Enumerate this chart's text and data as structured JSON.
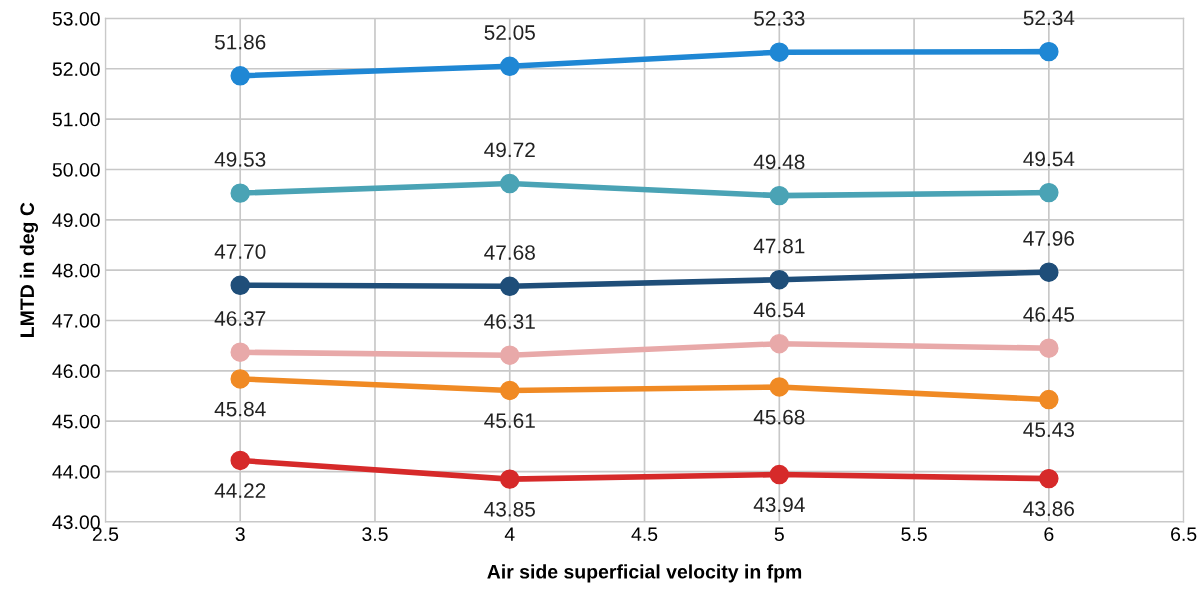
{
  "chart_data": {
    "type": "line",
    "xlabel": "Air side superficial velocity in fpm",
    "ylabel": "LMTD in deg C",
    "x": [
      3,
      4,
      5,
      6
    ],
    "series": [
      {
        "color": "#1f87d4",
        "values": [
          51.86,
          52.05,
          52.33,
          52.34
        ],
        "value_labels": [
          "51.86",
          "52.05",
          "52.33",
          "52.34"
        ]
      },
      {
        "color": "#4aa3b5",
        "values": [
          49.53,
          49.72,
          49.48,
          49.54
        ],
        "value_labels": [
          "49.53",
          "49.72",
          "49.48",
          "49.54"
        ]
      },
      {
        "color": "#1f4e79",
        "values": [
          47.7,
          47.68,
          47.81,
          47.96
        ],
        "value_labels": [
          "47.70",
          "47.68",
          "47.81",
          "47.96"
        ]
      },
      {
        "color": "#e8a9a9",
        "values": [
          46.37,
          46.31,
          46.54,
          46.45
        ],
        "value_labels": [
          "46.37",
          "46.31",
          "46.54",
          "46.45"
        ]
      },
      {
        "color": "#f08a24",
        "values": [
          45.84,
          45.61,
          45.68,
          45.43
        ],
        "value_labels": [
          "45.84",
          "45.61",
          "45.68",
          "45.43"
        ]
      },
      {
        "color": "#d62a2a",
        "values": [
          44.22,
          43.85,
          43.94,
          43.86
        ],
        "value_labels": [
          "44.22",
          "43.85",
          "43.94",
          "43.86"
        ]
      }
    ],
    "xlim": [
      2.5,
      6.5
    ],
    "xticks": [
      2.5,
      3,
      3.5,
      4,
      4.5,
      5,
      5.5,
      6,
      6.5
    ],
    "ylim": [
      43,
      53
    ],
    "yticks": [
      {
        "value": 43,
        "label": "43.00"
      },
      {
        "value": 44,
        "label": "44.00"
      },
      {
        "value": 45,
        "label": "45.00"
      },
      {
        "value": 46,
        "label": "46.00"
      },
      {
        "value": 47,
        "label": "47.00"
      },
      {
        "value": 48,
        "label": "48.00"
      },
      {
        "value": 49,
        "label": "49.00"
      },
      {
        "value": 50,
        "label": "50.00"
      },
      {
        "value": 51,
        "label": "51.00"
      },
      {
        "value": 52,
        "label": "52.00"
      },
      {
        "value": 53,
        "label": "53.00"
      }
    ],
    "grid": true,
    "marker": "circle",
    "line_style": "solid",
    "legend": false
  }
}
